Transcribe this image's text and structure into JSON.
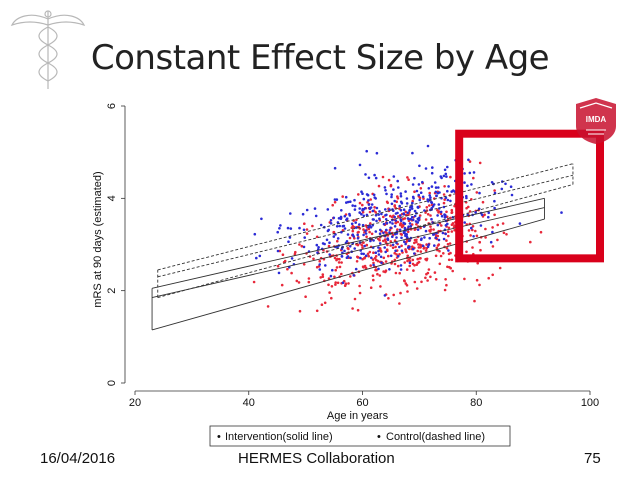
{
  "slide": {
    "title": "Constant Effect Size by Age",
    "date": "16/04/2016",
    "center_text": "HERMES Collaboration",
    "page_number": "75",
    "logo_right_text": "IMDA"
  },
  "colors": {
    "intervention": "#e8283a",
    "control": "#2b2bd6",
    "highlight": "#d9001b",
    "logo": "#c8102e"
  },
  "chart_data": {
    "type": "scatter",
    "title": "",
    "xlabel": "Age in years",
    "ylabel": "mRS at 90 days (estimated)",
    "xlim": [
      20,
      100
    ],
    "ylim": [
      0,
      6
    ],
    "xticks": [
      20,
      40,
      60,
      80,
      100
    ],
    "yticks": [
      0,
      2,
      4,
      6
    ],
    "legend": {
      "position": "bottom",
      "entries": [
        {
          "label": "Intervention(solid line)",
          "marker": "•",
          "series": "intervention"
        },
        {
          "label": "Control(dashed line)",
          "marker": "•",
          "series": "control"
        }
      ]
    },
    "fitted_lines": [
      {
        "name": "Intervention fit",
        "style": "solid",
        "x": [
          23,
          92
        ],
        "y": [
          1.85,
          3.8
        ]
      },
      {
        "name": "Intervention CI lower",
        "style": "solid",
        "x": [
          23,
          92
        ],
        "y": [
          1.15,
          3.55
        ]
      },
      {
        "name": "Intervention CI upper",
        "style": "solid",
        "x": [
          23,
          92
        ],
        "y": [
          2.05,
          4.0
        ]
      },
      {
        "name": "Control fit",
        "style": "dashed",
        "x": [
          24,
          97
        ],
        "y": [
          2.3,
          4.5
        ]
      },
      {
        "name": "Control CI lower",
        "style": "dashed",
        "x": [
          24,
          97
        ],
        "y": [
          1.85,
          4.3
        ]
      },
      {
        "name": "Control CI upper",
        "style": "dashed",
        "x": [
          24,
          97
        ],
        "y": [
          2.45,
          4.75
        ]
      }
    ],
    "highlight_box": {
      "x": [
        77,
        100
      ],
      "y": [
        2.7,
        5.4
      ]
    },
    "series": [
      {
        "name": "Intervention",
        "color_key": "intervention",
        "n_points": 560,
        "age_range": [
          22,
          92
        ]
      },
      {
        "name": "Control",
        "color_key": "control",
        "n_points": 440,
        "age_range": [
          24,
          96
        ]
      }
    ]
  }
}
